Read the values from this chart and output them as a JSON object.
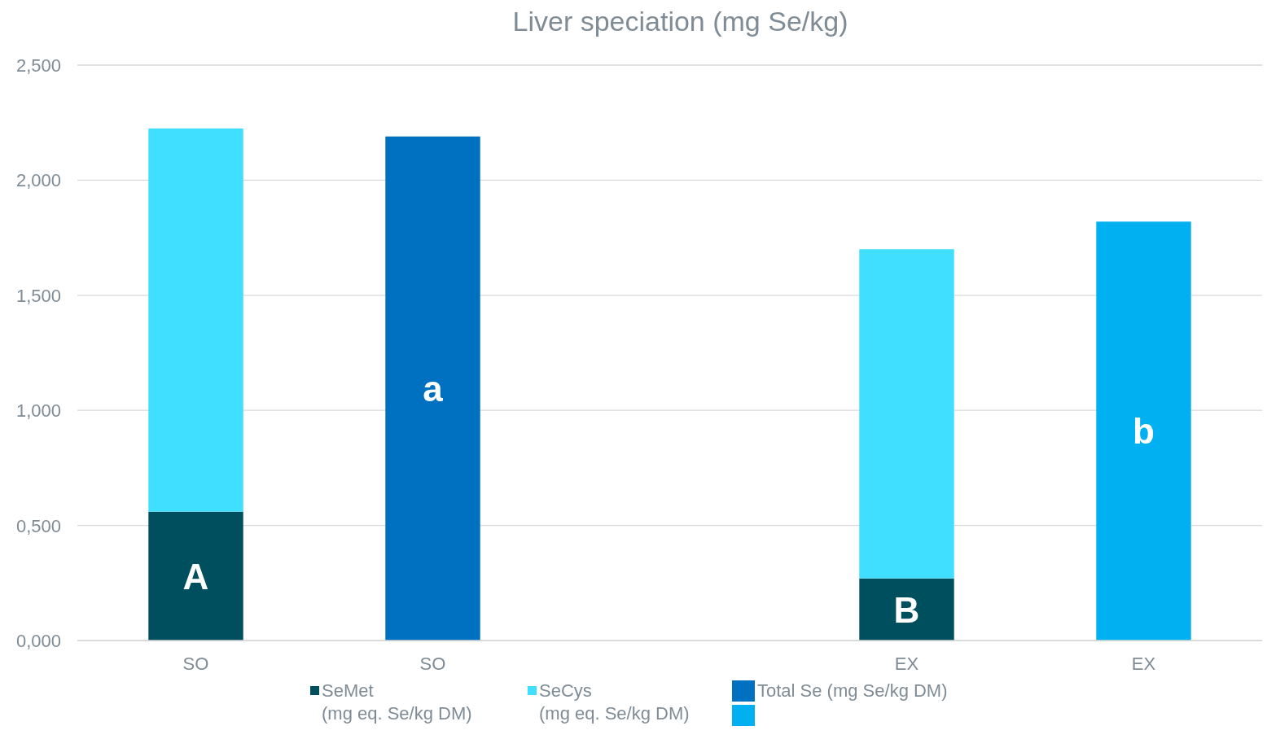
{
  "chart_data": {
    "type": "bar",
    "title": "Liver speciation (mg Se/kg)",
    "categories": [
      "SO",
      "SO",
      null,
      "EX",
      "EX"
    ],
    "stacked": true,
    "series": [
      {
        "name": "SeMet\n(mg eq. Se/kg DM)",
        "color": "#004f5f",
        "values": [
          0.56,
          null,
          null,
          0.27,
          null
        ],
        "value_labels": [
          "A",
          null,
          null,
          "B",
          null
        ]
      },
      {
        "name": "SeCys\n(mg eq. Se/kg DM)",
        "color": "#41dfff",
        "values": [
          1.665,
          null,
          null,
          1.43,
          null
        ]
      },
      {
        "name": "Total Se (mg Se/kg DM)",
        "color": "#0070c0",
        "values": [
          null,
          2.19,
          null,
          null,
          null
        ],
        "value_labels": [
          null,
          "a",
          null,
          null,
          null
        ]
      },
      {
        "color": "#00b0f0",
        "values": [
          null,
          null,
          null,
          null,
          1.82
        ],
        "value_labels": [
          null,
          null,
          null,
          null,
          "b"
        ]
      }
    ],
    "ylim": [
      0,
      2.5
    ],
    "yticks": [
      {
        "value": 0,
        "label": "0,000"
      },
      {
        "value": 0.5,
        "label": "0,500"
      },
      {
        "value": 1,
        "label": "1,000"
      },
      {
        "value": 1.5,
        "label": "1,500"
      },
      {
        "value": 2,
        "label": "2,000"
      },
      {
        "value": 2.5,
        "label": "2,500"
      }
    ],
    "grid": "y",
    "legend": "bottom"
  }
}
